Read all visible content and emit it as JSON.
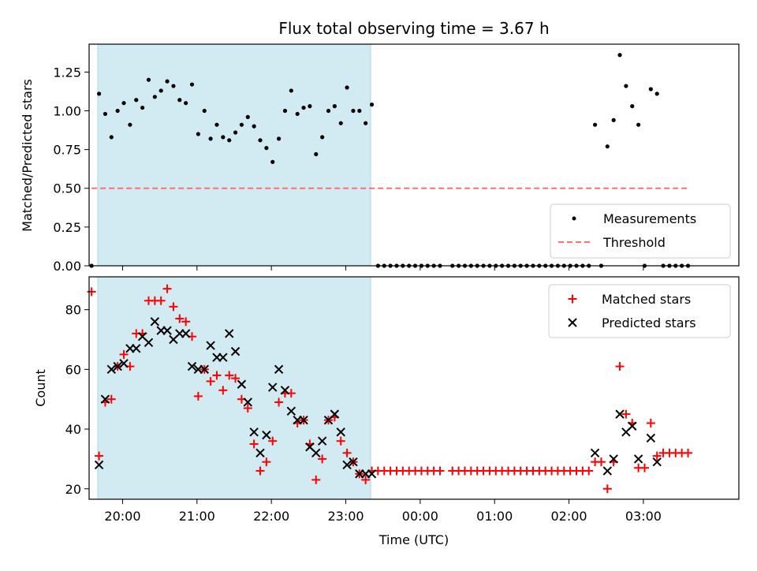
{
  "title": "Flux total observing time = 3.67 h",
  "colors": {
    "shade": "#add8e6",
    "measurement": "#000000",
    "threshold": "#ff6f6f",
    "matched": "#ff0000",
    "predicted": "#000000"
  },
  "chart_data": [
    {
      "type": "scatter",
      "ylabel": "Matched/Predicted stars",
      "ylim": [
        0,
        1.43
      ],
      "y_ticks": [
        "0.00",
        "0.25",
        "0.50",
        "0.75",
        "1.00",
        "1.25"
      ],
      "x_ticks": [
        "20:00",
        "21:00",
        "22:00",
        "23:00",
        "00:00",
        "01:00",
        "02:00",
        "03:00"
      ],
      "xlim": [
        "19:33",
        "04:17"
      ],
      "shaded_interval": [
        "19:40",
        "23:20"
      ],
      "legend": {
        "position": "bottom-right",
        "entries": [
          "Measurements",
          "Threshold"
        ]
      },
      "threshold": {
        "name": "Threshold",
        "y": 0.5,
        "x_start": "19:35",
        "x_end": "03:35"
      },
      "series": [
        {
          "name": "Measurements",
          "marker": "dot",
          "points": [
            [
              "19:35",
              0.0
            ],
            [
              "19:41",
              1.11
            ],
            [
              "19:46",
              0.98
            ],
            [
              "19:51",
              0.83
            ],
            [
              "19:56",
              1.0
            ],
            [
              "20:01",
              1.05
            ],
            [
              "20:06",
              0.91
            ],
            [
              "20:11",
              1.07
            ],
            [
              "20:16",
              1.02
            ],
            [
              "20:21",
              1.2
            ],
            [
              "20:26",
              1.09
            ],
            [
              "20:31",
              1.13
            ],
            [
              "20:36",
              1.19
            ],
            [
              "20:41",
              1.16
            ],
            [
              "20:46",
              1.07
            ],
            [
              "20:51",
              1.05
            ],
            [
              "20:56",
              1.17
            ],
            [
              "21:01",
              0.85
            ],
            [
              "21:06",
              1.0
            ],
            [
              "21:11",
              0.82
            ],
            [
              "21:16",
              0.91
            ],
            [
              "21:21",
              0.83
            ],
            [
              "21:26",
              0.81
            ],
            [
              "21:31",
              0.86
            ],
            [
              "21:36",
              0.91
            ],
            [
              "21:41",
              0.96
            ],
            [
              "21:46",
              0.9
            ],
            [
              "21:51",
              0.81
            ],
            [
              "21:56",
              0.76
            ],
            [
              "22:01",
              0.67
            ],
            [
              "22:06",
              0.82
            ],
            [
              "22:11",
              1.0
            ],
            [
              "22:16",
              1.13
            ],
            [
              "22:21",
              0.98
            ],
            [
              "22:26",
              1.02
            ],
            [
              "22:31",
              1.03
            ],
            [
              "22:36",
              0.72
            ],
            [
              "22:41",
              0.83
            ],
            [
              "22:46",
              1.0
            ],
            [
              "22:51",
              1.03
            ],
            [
              "22:56",
              0.92
            ],
            [
              "23:01",
              1.15
            ],
            [
              "23:06",
              1.0
            ],
            [
              "23:11",
              1.0
            ],
            [
              "23:16",
              0.92
            ],
            [
              "23:21",
              1.04
            ],
            [
              "23:26",
              0.0
            ],
            [
              "23:31",
              0.0
            ],
            [
              "23:36",
              0.0
            ],
            [
              "23:41",
              0.0
            ],
            [
              "23:46",
              0.0
            ],
            [
              "23:51",
              0.0
            ],
            [
              "23:56",
              0.0
            ],
            [
              "00:01",
              0.0
            ],
            [
              "00:06",
              0.0
            ],
            [
              "00:11",
              0.0
            ],
            [
              "00:16",
              0.0
            ],
            [
              "00:26",
              0.0
            ],
            [
              "00:31",
              0.0
            ],
            [
              "00:36",
              0.0
            ],
            [
              "00:41",
              0.0
            ],
            [
              "00:46",
              0.0
            ],
            [
              "00:51",
              0.0
            ],
            [
              "00:56",
              0.0
            ],
            [
              "01:01",
              0.0
            ],
            [
              "01:06",
              0.0
            ],
            [
              "01:11",
              0.0
            ],
            [
              "01:16",
              0.0
            ],
            [
              "01:21",
              0.0
            ],
            [
              "01:26",
              0.0
            ],
            [
              "01:31",
              0.0
            ],
            [
              "01:36",
              0.0
            ],
            [
              "01:41",
              0.0
            ],
            [
              "01:46",
              0.0
            ],
            [
              "01:51",
              0.0
            ],
            [
              "01:56",
              0.0
            ],
            [
              "02:01",
              0.0
            ],
            [
              "02:06",
              0.0
            ],
            [
              "02:11",
              0.0
            ],
            [
              "02:16",
              0.0
            ],
            [
              "02:21",
              0.91
            ],
            [
              "02:26",
              0.0
            ],
            [
              "02:31",
              0.77
            ],
            [
              "02:36",
              0.94
            ],
            [
              "02:41",
              1.36
            ],
            [
              "02:46",
              1.16
            ],
            [
              "02:51",
              1.03
            ],
            [
              "02:56",
              0.91
            ],
            [
              "03:01",
              0.0
            ],
            [
              "03:06",
              1.14
            ],
            [
              "03:11",
              1.11
            ],
            [
              "03:16",
              0.0
            ],
            [
              "03:21",
              0.0
            ],
            [
              "03:26",
              0.0
            ],
            [
              "03:31",
              0.0
            ],
            [
              "03:36",
              0.0
            ]
          ]
        }
      ]
    },
    {
      "type": "scatter",
      "xlabel": "Time (UTC)",
      "ylabel": "Count",
      "ylim": [
        16.5,
        91
      ],
      "y_ticks": [
        "20",
        "40",
        "60",
        "80"
      ],
      "x_ticks": [
        "20:00",
        "21:00",
        "22:00",
        "23:00",
        "00:00",
        "01:00",
        "02:00",
        "03:00"
      ],
      "xlim": [
        "19:33",
        "04:17"
      ],
      "shaded_interval": [
        "19:40",
        "23:20"
      ],
      "legend": {
        "position": "top-right",
        "entries": [
          "Matched stars",
          "Predicted stars"
        ]
      },
      "series": [
        {
          "name": "Matched stars",
          "marker": "plus",
          "points": [
            [
              "19:35",
              86
            ],
            [
              "19:41",
              31
            ],
            [
              "19:46",
              49
            ],
            [
              "19:51",
              50
            ],
            [
              "19:56",
              61
            ],
            [
              "20:01",
              65
            ],
            [
              "20:06",
              61
            ],
            [
              "20:11",
              72
            ],
            [
              "20:16",
              72
            ],
            [
              "20:21",
              83
            ],
            [
              "20:26",
              83
            ],
            [
              "20:31",
              83
            ],
            [
              "20:36",
              87
            ],
            [
              "20:41",
              81
            ],
            [
              "20:46",
              77
            ],
            [
              "20:51",
              76
            ],
            [
              "20:56",
              71
            ],
            [
              "21:01",
              51
            ],
            [
              "21:06",
              60
            ],
            [
              "21:11",
              56
            ],
            [
              "21:16",
              58
            ],
            [
              "21:21",
              53
            ],
            [
              "21:26",
              58
            ],
            [
              "21:31",
              57
            ],
            [
              "21:36",
              50
            ],
            [
              "21:41",
              47
            ],
            [
              "21:46",
              35
            ],
            [
              "21:51",
              26
            ],
            [
              "21:56",
              29
            ],
            [
              "22:01",
              36
            ],
            [
              "22:06",
              49
            ],
            [
              "22:11",
              52
            ],
            [
              "22:16",
              52
            ],
            [
              "22:21",
              42
            ],
            [
              "22:26",
              43
            ],
            [
              "22:31",
              35
            ],
            [
              "22:36",
              23
            ],
            [
              "22:41",
              30
            ],
            [
              "22:46",
              43
            ],
            [
              "22:51",
              44
            ],
            [
              "22:56",
              36
            ],
            [
              "23:01",
              32
            ],
            [
              "23:06",
              29
            ],
            [
              "23:11",
              25
            ],
            [
              "23:16",
              23
            ],
            [
              "23:21",
              26
            ],
            [
              "23:26",
              26
            ],
            [
              "23:31",
              26
            ],
            [
              "23:36",
              26
            ],
            [
              "23:41",
              26
            ],
            [
              "23:46",
              26
            ],
            [
              "23:51",
              26
            ],
            [
              "23:56",
              26
            ],
            [
              "00:01",
              26
            ],
            [
              "00:06",
              26
            ],
            [
              "00:11",
              26
            ],
            [
              "00:16",
              26
            ],
            [
              "00:26",
              26
            ],
            [
              "00:31",
              26
            ],
            [
              "00:36",
              26
            ],
            [
              "00:41",
              26
            ],
            [
              "00:46",
              26
            ],
            [
              "00:51",
              26
            ],
            [
              "00:56",
              26
            ],
            [
              "01:01",
              26
            ],
            [
              "01:06",
              26
            ],
            [
              "01:11",
              26
            ],
            [
              "01:16",
              26
            ],
            [
              "01:21",
              26
            ],
            [
              "01:26",
              26
            ],
            [
              "01:31",
              26
            ],
            [
              "01:36",
              26
            ],
            [
              "01:41",
              26
            ],
            [
              "01:46",
              26
            ],
            [
              "01:51",
              26
            ],
            [
              "01:56",
              26
            ],
            [
              "02:01",
              26
            ],
            [
              "02:06",
              26
            ],
            [
              "02:11",
              26
            ],
            [
              "02:16",
              26
            ],
            [
              "02:21",
              29
            ],
            [
              "02:26",
              29
            ],
            [
              "02:31",
              20
            ],
            [
              "02:36",
              29
            ],
            [
              "02:41",
              61
            ],
            [
              "02:46",
              45
            ],
            [
              "02:51",
              42
            ],
            [
              "02:56",
              27
            ],
            [
              "03:01",
              27
            ],
            [
              "03:06",
              42
            ],
            [
              "03:11",
              31
            ],
            [
              "03:16",
              32
            ],
            [
              "03:21",
              32
            ],
            [
              "03:26",
              32
            ],
            [
              "03:31",
              32
            ],
            [
              "03:36",
              32
            ]
          ]
        },
        {
          "name": "Predicted stars",
          "marker": "x",
          "points": [
            [
              "19:41",
              28
            ],
            [
              "19:46",
              50
            ],
            [
              "19:51",
              60
            ],
            [
              "19:56",
              61
            ],
            [
              "20:01",
              62
            ],
            [
              "20:06",
              67
            ],
            [
              "20:11",
              67
            ],
            [
              "20:16",
              71
            ],
            [
              "20:21",
              69
            ],
            [
              "20:26",
              76
            ],
            [
              "20:31",
              73
            ],
            [
              "20:36",
              73
            ],
            [
              "20:41",
              70
            ],
            [
              "20:46",
              72
            ],
            [
              "20:51",
              72
            ],
            [
              "20:56",
              61
            ],
            [
              "21:01",
              60
            ],
            [
              "21:06",
              60
            ],
            [
              "21:11",
              68
            ],
            [
              "21:16",
              64
            ],
            [
              "21:21",
              64
            ],
            [
              "21:26",
              72
            ],
            [
              "21:31",
              66
            ],
            [
              "21:36",
              55
            ],
            [
              "21:41",
              49
            ],
            [
              "21:46",
              39
            ],
            [
              "21:51",
              32
            ],
            [
              "21:56",
              38
            ],
            [
              "22:01",
              54
            ],
            [
              "22:06",
              60
            ],
            [
              "22:11",
              53
            ],
            [
              "22:16",
              46
            ],
            [
              "22:21",
              43
            ],
            [
              "22:26",
              43
            ],
            [
              "22:31",
              34
            ],
            [
              "22:36",
              32
            ],
            [
              "22:41",
              36
            ],
            [
              "22:46",
              43
            ],
            [
              "22:51",
              45
            ],
            [
              "22:56",
              39
            ],
            [
              "23:01",
              28
            ],
            [
              "23:06",
              29
            ],
            [
              "23:11",
              25
            ],
            [
              "23:16",
              25
            ],
            [
              "23:21",
              25
            ],
            [
              "02:21",
              32
            ],
            [
              "02:31",
              26
            ],
            [
              "02:36",
              30
            ],
            [
              "02:41",
              45
            ],
            [
              "02:46",
              39
            ],
            [
              "02:51",
              41
            ],
            [
              "02:56",
              30
            ],
            [
              "03:06",
              37
            ],
            [
              "03:11",
              29
            ]
          ]
        }
      ]
    }
  ]
}
